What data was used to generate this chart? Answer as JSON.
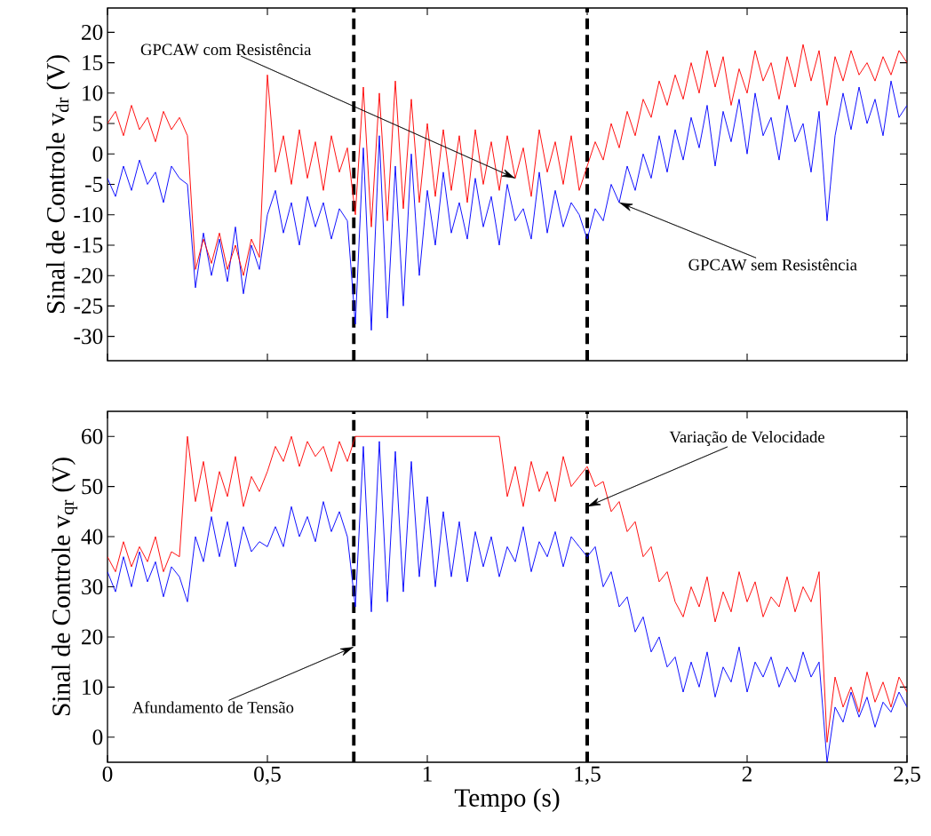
{
  "chart_data": [
    {
      "type": "line",
      "ylabel": "Sinal de Controle v$_{dr}$ (V)",
      "xlim": [
        0,
        2.5
      ],
      "ylim": [
        -34,
        24
      ],
      "xticks": [
        0,
        0.5,
        1,
        1.5,
        2,
        2.5
      ],
      "yticks": [
        -30,
        -25,
        -20,
        -15,
        -10,
        -5,
        0,
        5,
        10,
        15,
        20
      ],
      "tick_labels": "y",
      "x": [
        0,
        0.025,
        0.05,
        0.075,
        0.1,
        0.125,
        0.15,
        0.175,
        0.2,
        0.225,
        0.25,
        0.275,
        0.3,
        0.325,
        0.35,
        0.375,
        0.4,
        0.425,
        0.45,
        0.475,
        0.5,
        0.525,
        0.55,
        0.575,
        0.6,
        0.625,
        0.65,
        0.675,
        0.7,
        0.725,
        0.75,
        0.775,
        0.8,
        0.825,
        0.85,
        0.875,
        0.9,
        0.925,
        0.95,
        0.975,
        1,
        1.025,
        1.05,
        1.075,
        1.1,
        1.125,
        1.15,
        1.175,
        1.2,
        1.225,
        1.25,
        1.275,
        1.3,
        1.325,
        1.35,
        1.375,
        1.4,
        1.425,
        1.45,
        1.475,
        1.5,
        1.525,
        1.55,
        1.575,
        1.6,
        1.625,
        1.65,
        1.675,
        1.7,
        1.725,
        1.75,
        1.775,
        1.8,
        1.825,
        1.85,
        1.875,
        1.9,
        1.925,
        1.95,
        1.975,
        2,
        2.025,
        2.05,
        2.075,
        2.1,
        2.125,
        2.15,
        2.175,
        2.2,
        2.225,
        2.25,
        2.275,
        2.3,
        2.325,
        2.35,
        2.375,
        2.4,
        2.425,
        2.45,
        2.475,
        2.5
      ],
      "series": [
        {
          "color": "#0000ff",
          "values": [
            -4,
            -7,
            -2,
            -6,
            -1,
            -5,
            -3,
            -8,
            -2,
            -4,
            -5,
            -22,
            -13,
            -20,
            -14,
            -21,
            -12,
            -23,
            -15,
            -19,
            -10,
            -6,
            -13,
            -8,
            -15,
            -7,
            -12,
            -8,
            -14,
            -9,
            -11,
            -28,
            1,
            -29,
            3,
            -27,
            -2,
            -25,
            0,
            -20,
            -6,
            -15,
            -3,
            -13,
            -8,
            -14,
            -4,
            -12,
            -7,
            -15,
            -5,
            -11,
            -9,
            -14,
            -3,
            -13,
            -6,
            -12,
            -8,
            -10,
            -14,
            -9,
            -11,
            -5,
            -8,
            -2,
            -6,
            0,
            -4,
            3,
            -3,
            4,
            -1,
            6,
            1,
            8,
            -2,
            7,
            2,
            9,
            0,
            10,
            3,
            6,
            -1,
            8,
            2,
            5,
            -3,
            7,
            -11,
            3,
            10,
            4,
            11,
            5,
            9,
            3,
            12,
            6,
            8
          ]
        },
        {
          "color": "#ff0000",
          "values": [
            5,
            7,
            3,
            8,
            4,
            6,
            2,
            7,
            4,
            6,
            3,
            -19,
            -14,
            -18,
            -13,
            -19,
            -15,
            -20,
            -14,
            -17,
            13,
            -3,
            3,
            -5,
            4,
            -4,
            2,
            -6,
            3,
            -3,
            1,
            -10,
            11,
            -12,
            10,
            -11,
            12,
            -9,
            9,
            -8,
            5,
            -7,
            4,
            -6,
            3,
            -8,
            4,
            -5,
            2,
            -6,
            3,
            -4,
            1,
            -7,
            4,
            -3,
            2,
            -5,
            3,
            -6,
            -2,
            2,
            -1,
            5,
            1,
            7,
            3,
            9,
            6,
            12,
            8,
            13,
            9,
            15,
            10,
            17,
            11,
            16,
            8,
            14,
            10,
            17,
            12,
            15,
            9,
            16,
            11,
            18,
            12,
            17,
            8,
            16,
            12,
            17,
            13,
            15,
            12,
            16,
            13,
            17,
            15
          ]
        }
      ],
      "ref_lines": [
        {
          "axis": "x",
          "value": 0.77,
          "color": "#000000",
          "line_style": "dashed"
        },
        {
          "axis": "x",
          "value": 1.5,
          "color": "#000000",
          "line_style": "dashed"
        }
      ],
      "annotations": [
        {
          "text": "GPCAW com Resistência",
          "x": 1.275,
          "y": -4
        },
        {
          "text": "GPCAW sem Resistência",
          "x": 1.6,
          "y": -8
        }
      ]
    },
    {
      "type": "line",
      "xlabel": "Tempo (s)",
      "ylabel": "Sinal de Controle v$_{qr}$ (V)",
      "xlim": [
        0,
        2.5
      ],
      "ylim": [
        -5,
        65
      ],
      "xticks": [
        0,
        {
          "value": 0.5,
          "label": "0,5"
        },
        1,
        {
          "value": 1.5,
          "label": "1,5"
        },
        2,
        {
          "value": 2.5,
          "label": "2,5"
        }
      ],
      "yticks": [
        0,
        10,
        20,
        30,
        40,
        50,
        60
      ],
      "x": [
        0,
        0.025,
        0.05,
        0.075,
        0.1,
        0.125,
        0.15,
        0.175,
        0.2,
        0.225,
        0.25,
        0.275,
        0.3,
        0.325,
        0.35,
        0.375,
        0.4,
        0.425,
        0.45,
        0.475,
        0.5,
        0.525,
        0.55,
        0.575,
        0.6,
        0.625,
        0.65,
        0.675,
        0.7,
        0.725,
        0.75,
        0.775,
        0.8,
        0.825,
        0.85,
        0.875,
        0.9,
        0.925,
        0.95,
        0.975,
        1,
        1.025,
        1.05,
        1.075,
        1.1,
        1.125,
        1.15,
        1.175,
        1.2,
        1.225,
        1.25,
        1.275,
        1.3,
        1.325,
        1.35,
        1.375,
        1.4,
        1.425,
        1.45,
        1.475,
        1.5,
        1.525,
        1.55,
        1.575,
        1.6,
        1.625,
        1.65,
        1.675,
        1.7,
        1.725,
        1.75,
        1.775,
        1.8,
        1.825,
        1.85,
        1.875,
        1.9,
        1.925,
        1.95,
        1.975,
        2,
        2.025,
        2.05,
        2.075,
        2.1,
        2.125,
        2.15,
        2.175,
        2.2,
        2.225,
        2.25,
        2.275,
        2.3,
        2.325,
        2.35,
        2.375,
        2.4,
        2.425,
        2.45,
        2.475,
        2.5
      ],
      "series": [
        {
          "color": "#0000ff",
          "values": [
            33,
            29,
            36,
            30,
            37,
            31,
            35,
            28,
            34,
            32,
            27,
            40,
            35,
            44,
            36,
            43,
            34,
            42,
            37,
            39,
            38,
            42,
            38,
            46,
            40,
            44,
            39,
            47,
            41,
            45,
            40,
            26,
            58,
            25,
            59,
            27,
            57,
            29,
            55,
            32,
            48,
            30,
            45,
            32,
            43,
            31,
            41,
            34,
            40,
            32,
            38,
            35,
            42,
            33,
            39,
            36,
            41,
            34,
            40,
            38,
            36,
            38,
            30,
            33,
            26,
            28,
            21,
            24,
            17,
            20,
            14,
            16,
            9,
            15,
            10,
            17,
            8,
            14,
            11,
            18,
            9,
            15,
            12,
            16,
            10,
            14,
            11,
            17,
            12,
            15,
            -5,
            6,
            3,
            9,
            4,
            8,
            2,
            7,
            5,
            9,
            6
          ]
        },
        {
          "color": "#ff0000",
          "values": [
            36,
            33,
            39,
            34,
            38,
            35,
            40,
            33,
            37,
            36,
            60,
            47,
            55,
            45,
            53,
            48,
            56,
            46,
            52,
            49,
            53,
            58,
            55,
            60,
            54,
            59,
            56,
            58,
            53,
            59,
            55,
            60,
            60,
            60,
            60,
            60,
            60,
            60,
            60,
            60,
            60,
            60,
            60,
            60,
            60,
            60,
            60,
            60,
            60,
            60,
            48,
            54,
            46,
            55,
            49,
            53,
            47,
            56,
            50,
            52,
            54,
            50,
            51,
            45,
            47,
            41,
            43,
            36,
            38,
            31,
            33,
            27,
            24,
            30,
            26,
            32,
            23,
            29,
            25,
            33,
            27,
            31,
            24,
            28,
            26,
            32,
            25,
            30,
            27,
            33,
            -1,
            12,
            6,
            10,
            5,
            13,
            7,
            11,
            6,
            12,
            9
          ]
        }
      ],
      "ref_lines": [
        {
          "axis": "x",
          "value": 0.77,
          "color": "#000000",
          "line_style": "dashed"
        },
        {
          "axis": "x",
          "value": 1.5,
          "color": "#000000",
          "line_style": "dashed"
        }
      ],
      "annotations": [
        {
          "text": "Variação de Velocidade",
          "x": 1.5,
          "y": 46
        },
        {
          "text": "Afundamento de Tensão",
          "x": 0.77,
          "y": 18
        }
      ]
    }
  ]
}
